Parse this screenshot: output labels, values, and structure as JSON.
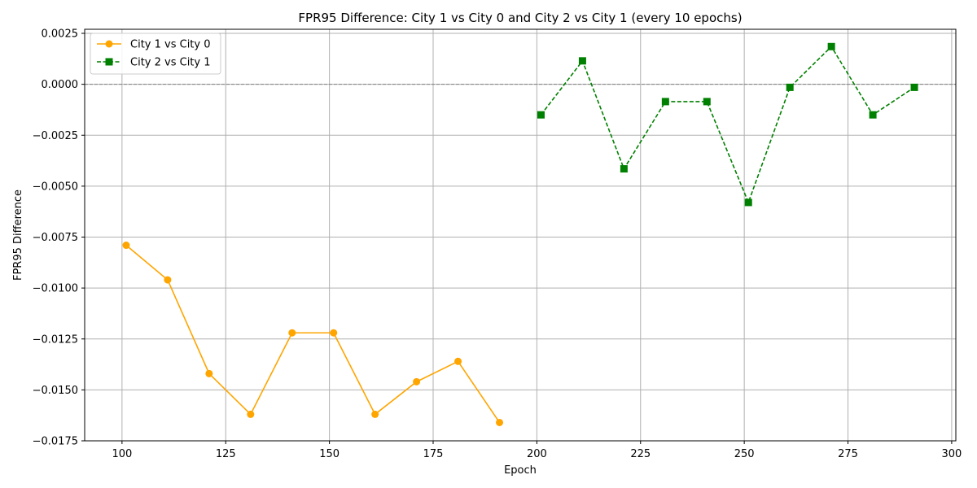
{
  "chart_data": {
    "type": "line",
    "title": "FPR95 Difference: City 1 vs City 0 and City 2 vs City 1 (every 10 epochs)",
    "xlabel": "Epoch",
    "ylabel": "FPR95 Difference",
    "xlim": [
      91,
      301
    ],
    "ylim": [
      -0.0175,
      0.0027
    ],
    "xticks": [
      100,
      125,
      150,
      175,
      200,
      225,
      250,
      275,
      300
    ],
    "xtick_labels": [
      "100",
      "125",
      "150",
      "175",
      "200",
      "225",
      "250",
      "275",
      "300"
    ],
    "yticks": [
      0.0025,
      0.0,
      -0.0025,
      -0.005,
      -0.0075,
      -0.01,
      -0.0125,
      -0.015,
      -0.0175
    ],
    "ytick_labels": [
      "0.0025",
      "0.0000",
      "−0.0025",
      "−0.0050",
      "−0.0075",
      "−0.0100",
      "−0.0125",
      "−0.0150",
      "−0.0175"
    ],
    "grid": true,
    "reference_line": {
      "y": 0.0,
      "style": "dashed",
      "color": "#808080"
    },
    "legend_position": "upper-left",
    "series": [
      {
        "name": "City 1 vs City 0",
        "color": "#FFA500",
        "marker": "circle",
        "line_style": "solid",
        "x": [
          101,
          111,
          121,
          131,
          141,
          151,
          161,
          171,
          181,
          191
        ],
        "y": [
          -0.0079,
          -0.0096,
          -0.0142,
          -0.0162,
          -0.0122,
          -0.0122,
          -0.0162,
          -0.0146,
          -0.0136,
          -0.0166
        ]
      },
      {
        "name": "City 2 vs City 1",
        "color": "#008000",
        "marker": "square",
        "line_style": "dashed",
        "x": [
          201,
          211,
          221,
          231,
          241,
          251,
          261,
          271,
          281,
          291
        ],
        "y": [
          -0.0015,
          0.00115,
          -0.00415,
          -0.00085,
          -0.00085,
          -0.0058,
          -0.00015,
          0.00185,
          -0.0015,
          -0.00015
        ]
      }
    ]
  }
}
